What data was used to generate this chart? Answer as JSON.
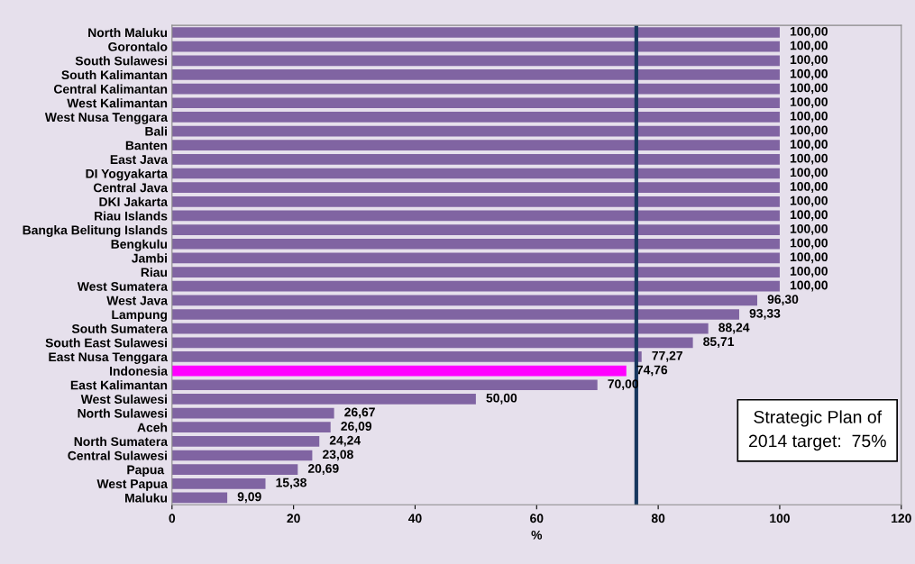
{
  "chart_data": {
    "type": "bar",
    "orientation": "horizontal",
    "xlabel": "%",
    "categories": [
      "North Maluku",
      "Gorontalo",
      "South Sulawesi",
      "South Kalimantan",
      "Central Kalimantan",
      "West Kalimantan",
      "West Nusa Tenggara",
      "Bali",
      "Banten",
      "East Java",
      "DI Yogyakarta",
      "Central Java",
      "DKI Jakarta",
      "Riau Islands",
      "Bangka Belitung Islands",
      "Bengkulu",
      "Jambi",
      "Riau",
      "West Sumatera",
      "West Java",
      "Lampung",
      "South Sumatera",
      "South East Sulawesi",
      "East Nusa Tenggara",
      "Indonesia",
      "East Kalimantan",
      "West Sulawesi",
      "North Sulawesi",
      "Aceh",
      "North Sumatera",
      "Central Sulawesi",
      "Papua ",
      "West Papua",
      "Maluku"
    ],
    "values": [
      100,
      100,
      100,
      100,
      100,
      100,
      100,
      100,
      100,
      100,
      100,
      100,
      100,
      100,
      100,
      100,
      100,
      100,
      100,
      96.3,
      93.33,
      88.24,
      85.71,
      77.27,
      74.76,
      70,
      50,
      26.67,
      26.09,
      24.24,
      23.08,
      20.69,
      15.38,
      9.09
    ],
    "value_labels": [
      "100,00",
      "100,00",
      "100,00",
      "100,00",
      "100,00",
      "100,00",
      "100,00",
      "100,00",
      "100,00",
      "100,00",
      "100,00",
      "100,00",
      "100,00",
      "100,00",
      "100,00",
      "100,00",
      "100,00",
      "100,00",
      "100,00",
      "96,30",
      "93,33",
      "88,24",
      "85,71",
      "77,27",
      "74,76",
      "70,00",
      "50,00",
      "26,67",
      "26,09",
      "24,24",
      "23,08",
      "20,69",
      "15,38",
      "9,09"
    ],
    "colors": [
      "#8064a2",
      "#8064a2",
      "#8064a2",
      "#8064a2",
      "#8064a2",
      "#8064a2",
      "#8064a2",
      "#8064a2",
      "#8064a2",
      "#8064a2",
      "#8064a2",
      "#8064a2",
      "#8064a2",
      "#8064a2",
      "#8064a2",
      "#8064a2",
      "#8064a2",
      "#8064a2",
      "#8064a2",
      "#8064a2",
      "#8064a2",
      "#8064a2",
      "#8064a2",
      "#8064a2",
      "#ff00ff",
      "#8064a2",
      "#8064a2",
      "#8064a2",
      "#8064a2",
      "#8064a2",
      "#8064a2",
      "#8064a2",
      "#8064a2",
      "#8064a2"
    ],
    "xlim": [
      0,
      120
    ],
    "xticks": [
      0,
      20,
      40,
      60,
      80,
      100,
      120
    ],
    "ref_lines": [
      {
        "axis": "x",
        "value": 76.4,
        "color": "#17375e"
      }
    ],
    "annotations": [
      "Strategic Plan of\n2014 target:  75%"
    ],
    "grid": false
  }
}
